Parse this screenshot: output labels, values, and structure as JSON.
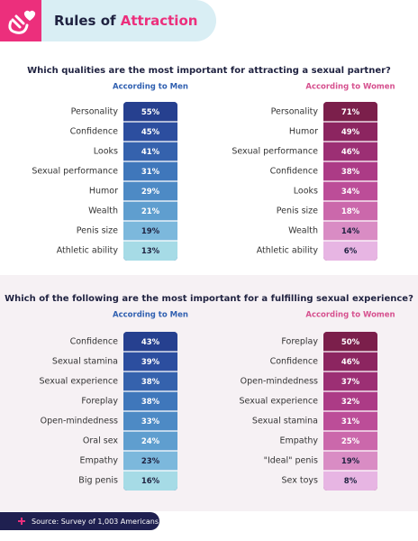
{
  "header": {
    "title": "Rules of",
    "title_highlight": "Attraction"
  },
  "sections": [
    {
      "question": "Which qualities are the most important for attracting a sexual partner?",
      "columns": [
        {
          "heading": "According to Men",
          "rows": [
            {
              "label": "Personality",
              "value": "55%"
            },
            {
              "label": "Confidence",
              "value": "45%"
            },
            {
              "label": "Looks",
              "value": "41%"
            },
            {
              "label": "Sexual performance",
              "value": "31%"
            },
            {
              "label": "Humor",
              "value": "29%"
            },
            {
              "label": "Wealth",
              "value": "21%"
            },
            {
              "label": "Penis size",
              "value": "19%"
            },
            {
              "label": "Athletic ability",
              "value": "13%"
            }
          ]
        },
        {
          "heading": "According to Women",
          "rows": [
            {
              "label": "Personality",
              "value": "71%"
            },
            {
              "label": "Humor",
              "value": "49%"
            },
            {
              "label": "Sexual performance",
              "value": "46%"
            },
            {
              "label": "Confidence",
              "value": "38%"
            },
            {
              "label": "Looks",
              "value": "34%"
            },
            {
              "label": "Penis size",
              "value": "18%"
            },
            {
              "label": "Wealth",
              "value": "14%"
            },
            {
              "label": "Athletic ability",
              "value": "6%"
            }
          ]
        }
      ]
    },
    {
      "question": "Which of the following are the most important for a fulfilling sexual experience?",
      "columns": [
        {
          "heading": "According to Men",
          "rows": [
            {
              "label": "Confidence",
              "value": "43%"
            },
            {
              "label": "Sexual stamina",
              "value": "39%"
            },
            {
              "label": "Sexual experience",
              "value": "38%"
            },
            {
              "label": "Foreplay",
              "value": "38%"
            },
            {
              "label": "Open-mindedness",
              "value": "33%"
            },
            {
              "label": "Oral sex",
              "value": "24%"
            },
            {
              "label": "Empathy",
              "value": "23%"
            },
            {
              "label": "Big penis",
              "value": "16%"
            }
          ]
        },
        {
          "heading": "According to Women",
          "rows": [
            {
              "label": "Foreplay",
              "value": "50%"
            },
            {
              "label": "Confidence",
              "value": "46%"
            },
            {
              "label": "Open-mindedness",
              "value": "37%"
            },
            {
              "label": "Sexual experience",
              "value": "32%"
            },
            {
              "label": "Sexual stamina",
              "value": "31%"
            },
            {
              "label": "Empathy",
              "value": "25%"
            },
            {
              "label": "\"Ideal\" penis",
              "value": "19%"
            },
            {
              "label": "Sex toys",
              "value": "8%"
            }
          ]
        }
      ]
    }
  ],
  "footer": {
    "source": "Source: Survey of 1,003 Americans"
  }
}
